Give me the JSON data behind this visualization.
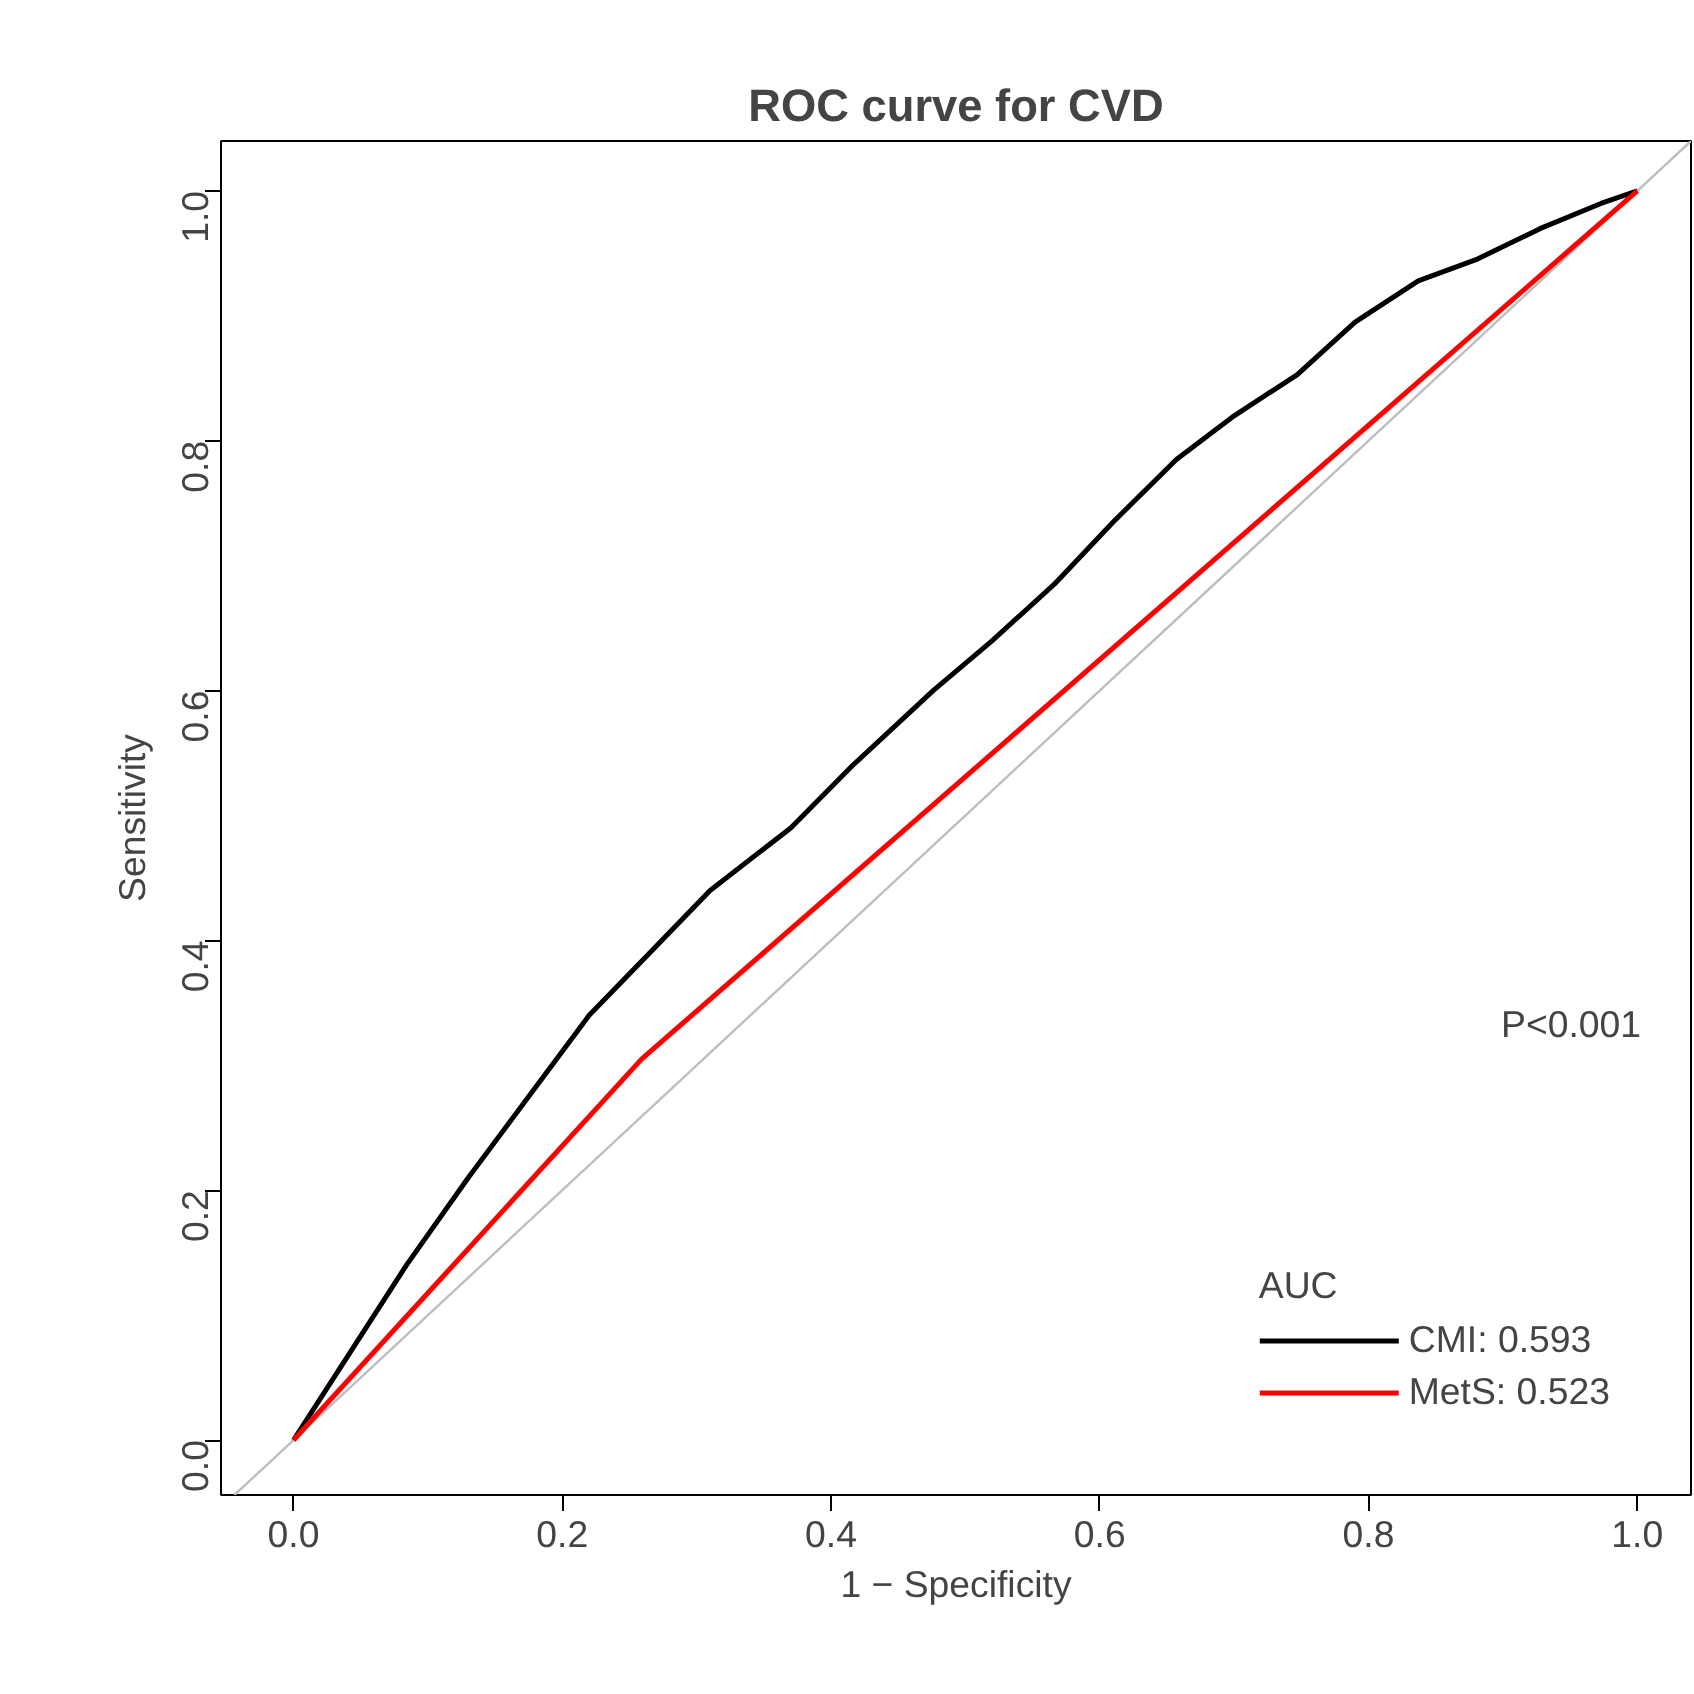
{
  "chart_data": {
    "type": "line",
    "title": "ROC curve for CVD",
    "xlabel": "1 − Specificity",
    "ylabel": "Sensitivity",
    "legend_title": "AUC",
    "legend": "bottom right",
    "grid": false,
    "xlim": [
      -0.054,
      1.04
    ],
    "ylim": [
      -0.044,
      1.04
    ],
    "xticks": [
      {
        "value": 0,
        "label": "0.0"
      },
      {
        "value": 0.2,
        "label": "0.2"
      },
      {
        "value": 0.4,
        "label": "0.4"
      },
      {
        "value": 0.6,
        "label": "0.6"
      },
      {
        "value": 0.8,
        "label": "0.8"
      },
      {
        "value": 1,
        "label": "1.0"
      }
    ],
    "yticks": [
      {
        "value": 0,
        "label": "0.0"
      },
      {
        "value": 0.2,
        "label": "0.2"
      },
      {
        "value": 0.4,
        "label": "0.4"
      },
      {
        "value": 0.6,
        "label": "0.6"
      },
      {
        "value": 0.8,
        "label": "0.8"
      },
      {
        "value": 1,
        "label": "1.0"
      }
    ],
    "series": [
      {
        "color": "#bebebe",
        "x": [
          -0.044,
          1.04
        ],
        "values": [
          -0.044,
          1.04
        ]
      },
      {
        "name": "CMI: 0.593",
        "color": "#000000",
        "x": [
          0,
          0.024,
          0.054,
          0.084,
          0.13,
          0.175,
          0.22,
          0.265,
          0.31,
          0.37,
          0.416,
          0.476,
          0.52,
          0.566,
          0.61,
          0.657,
          0.7,
          0.747,
          0.79,
          0.837,
          0.88,
          0.928,
          0.973,
          1
        ],
        "values": [
          0,
          0.04,
          0.09,
          0.14,
          0.21,
          0.275,
          0.34,
          0.39,
          0.44,
          0.49,
          0.54,
          0.6,
          0.64,
          0.685,
          0.735,
          0.785,
          0.82,
          0.853,
          0.895,
          0.928,
          0.945,
          0.97,
          0.99,
          1
        ]
      },
      {
        "name": "MetS: 0.523",
        "color": "#ff0000",
        "x": [
          0,
          0.259,
          1
        ],
        "values": [
          0,
          0.305,
          1
        ]
      }
    ],
    "annotations": [
      "P<0.001"
    ]
  }
}
